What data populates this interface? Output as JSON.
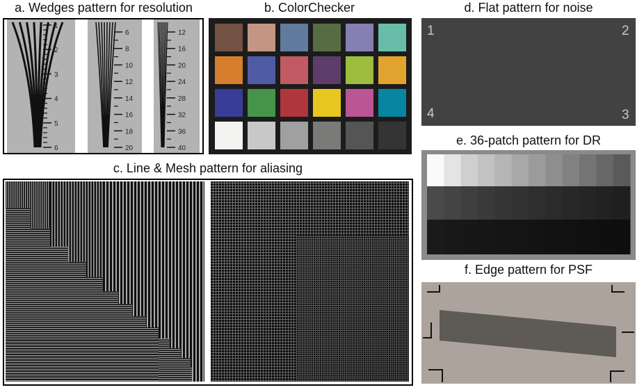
{
  "captions": {
    "a": "a. Wedges pattern for resolution",
    "b": "b. ColorChecker",
    "c": "c. Line & Mesh pattern for aliasing",
    "d": "d. Flat pattern for noise",
    "e": "e. 36-patch pattern for DR",
    "f": "f. Edge pattern for PSF"
  },
  "wedges": [
    {
      "labels": [
        "1",
        "2",
        "3",
        "4",
        "5",
        "6"
      ]
    },
    {
      "labels": [
        "6",
        "8",
        "10",
        "12",
        "14",
        "16",
        "18",
        "20"
      ]
    },
    {
      "labels": [
        "12",
        "16",
        "20",
        "24",
        "28",
        "32",
        "36",
        "40"
      ]
    }
  ],
  "colorchecker": {
    "colors": [
      "#735244",
      "#c29682",
      "#627a9d",
      "#576c43",
      "#8580b1",
      "#67bdaa",
      "#d67e2c",
      "#505ba6",
      "#c15a63",
      "#5e3c6c",
      "#9dbc40",
      "#e0a32e",
      "#383d96",
      "#469449",
      "#af363c",
      "#e7c71f",
      "#bb5695",
      "#0885a1",
      "#f3f3f2",
      "#c8c8c8",
      "#a0a0a0",
      "#7a7a79",
      "#555555",
      "#343434"
    ]
  },
  "flat": {
    "corners": [
      "1",
      "2",
      "3",
      "4"
    ]
  },
  "dr_patches": {
    "rows": [
      [
        "#fafafa",
        "#e4e4e4",
        "#cfcfcf",
        "#c2c2c2",
        "#b5b5b5",
        "#a8a8a8",
        "#9b9b9b",
        "#8e8e8e",
        "#818181",
        "#747474",
        "#676767",
        "#5a5a5a"
      ],
      [
        "#4a4a4a",
        "#444444",
        "#3f3f3f",
        "#3a3a3a",
        "#363636",
        "#323232",
        "#2e2e2e",
        "#2b2b2b",
        "#282828",
        "#252525",
        "#222222",
        "#1f1f1f"
      ],
      [
        "#1a1a1a",
        "#181818",
        "#171717",
        "#161616",
        "#151515",
        "#141414",
        "#131313",
        "#121212",
        "#111111",
        "#101010",
        "#0f0f0f",
        "#0e0e0e"
      ]
    ]
  }
}
